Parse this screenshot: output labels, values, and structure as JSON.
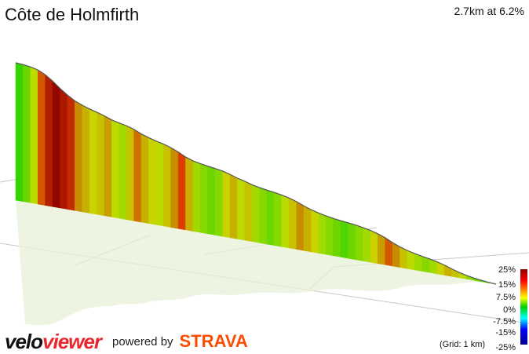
{
  "header": {
    "title": "Côte de Holmfirth",
    "summary": "2.7km at 6.2%"
  },
  "footer": {
    "brand_part1": "velo",
    "brand_part2": "viewer",
    "powered_by": "powered by",
    "strava": "STRAVA"
  },
  "legend": {
    "ticks": [
      "25%",
      "15%",
      "7.5%",
      "0%",
      "-7.5%",
      "-15%",
      "-25%"
    ],
    "grid_note": "(Grid: 1 km)"
  },
  "colors": {
    "gradient_scale": [
      "#8b0000",
      "#ff0000",
      "#ff8c00",
      "#ffff00",
      "#00d000",
      "#00ffff",
      "#0000ff",
      "#00008b"
    ],
    "shadow": "#e8f0d8",
    "gridline": "#c8c8c8",
    "strava": "#fc4c02",
    "brand_accent": "#e8262e"
  },
  "chart_data": {
    "type": "area",
    "title": "Côte de Holmfirth",
    "distance_km": 2.7,
    "average_gradient_pct": 6.2,
    "segment_gradients_pct": [
      2,
      4,
      7,
      14,
      20,
      24,
      21,
      18,
      12,
      10,
      8,
      9,
      11,
      7,
      6,
      9,
      13,
      10,
      8,
      7,
      9,
      12,
      15,
      10,
      6,
      5,
      4,
      5,
      8,
      10,
      7,
      9,
      6,
      5,
      4,
      5,
      7,
      9,
      12,
      10,
      8,
      6,
      5,
      4,
      3,
      4,
      5,
      6,
      8,
      11,
      14,
      12,
      9,
      7,
      6,
      5,
      6,
      8,
      10,
      9,
      7,
      5,
      4,
      3,
      2
    ],
    "color_scale_range_pct": [
      -25,
      25
    ]
  }
}
